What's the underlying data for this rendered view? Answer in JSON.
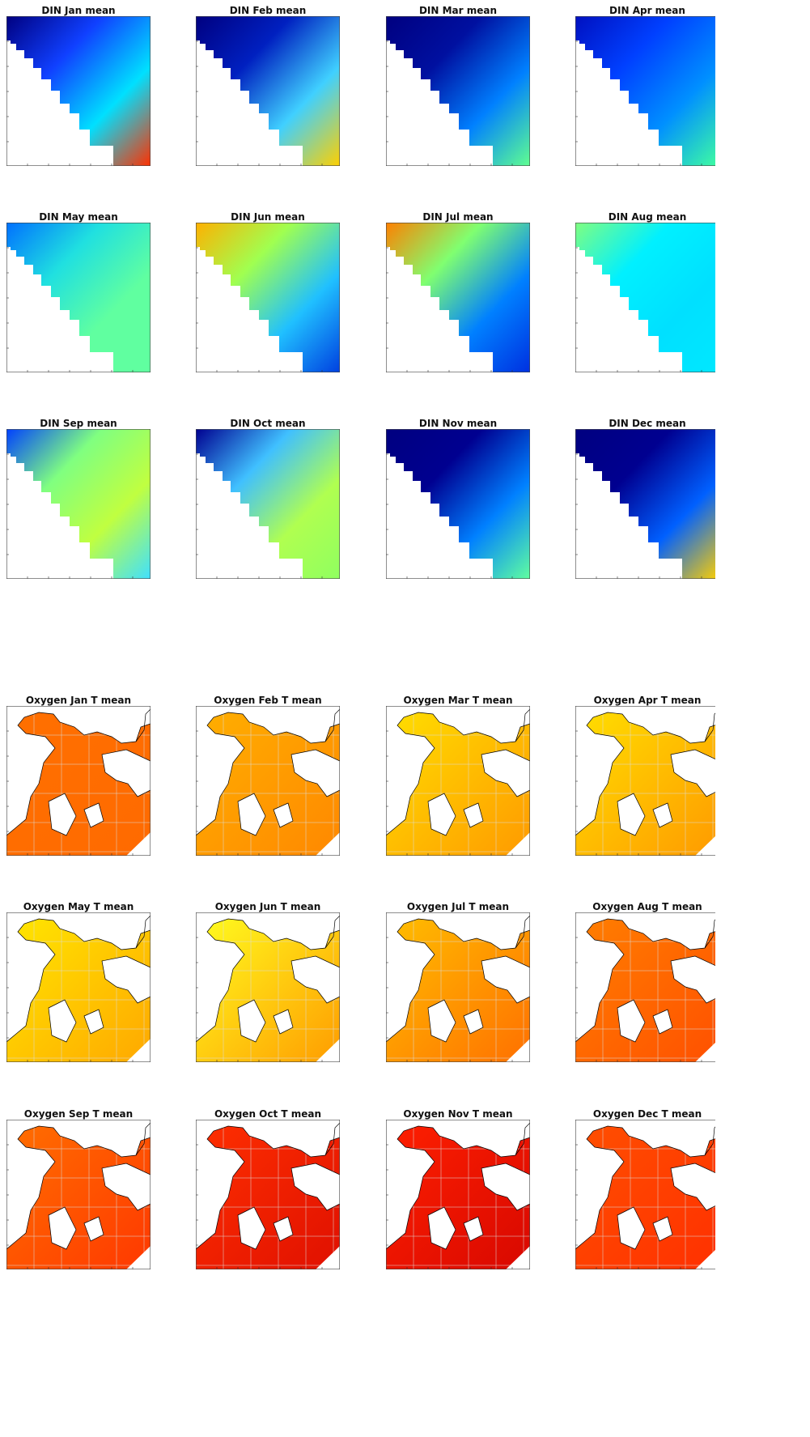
{
  "din_panels": [
    {
      "title": "DIN Jan mean",
      "colors": [
        "#000080",
        "#1040ff",
        "#00e0ff",
        "#ff3000"
      ]
    },
    {
      "title": "DIN Feb mean",
      "colors": [
        "#000080",
        "#0020c0",
        "#40d0ff",
        "#ffd000"
      ]
    },
    {
      "title": "DIN Mar mean",
      "colors": [
        "#000080",
        "#0010a0",
        "#0080ff",
        "#60ff90"
      ]
    },
    {
      "title": "DIN Apr mean",
      "colors": [
        "#0010c0",
        "#0040ff",
        "#0090ff",
        "#40ffa0"
      ]
    },
    {
      "title": "DIN May mean",
      "colors": [
        "#0070ff",
        "#20e0e0",
        "#60ffa0",
        "#60ffa0"
      ]
    },
    {
      "title": "DIN Jun mean",
      "colors": [
        "#ffb000",
        "#a0ff50",
        "#20c0ff",
        "#0040e0"
      ]
    },
    {
      "title": "DIN Jul mean",
      "colors": [
        "#ff8000",
        "#80ff70",
        "#0080ff",
        "#0030e0"
      ]
    },
    {
      "title": "DIN Aug mean",
      "colors": [
        "#80ff80",
        "#00f0ff",
        "#00e0ff",
        "#00e8ff"
      ]
    },
    {
      "title": "DIN Sep mean",
      "colors": [
        "#0040ff",
        "#80ff80",
        "#c0ff40",
        "#40e0ff"
      ]
    },
    {
      "title": "DIN Oct mean",
      "colors": [
        "#000090",
        "#40c0ff",
        "#b0ff50",
        "#90ff60"
      ]
    },
    {
      "title": "DIN Nov mean",
      "colors": [
        "#000080",
        "#000090",
        "#0080ff",
        "#60ffa0"
      ]
    },
    {
      "title": "DIN Dec mean",
      "colors": [
        "#000080",
        "#000090",
        "#0060ff",
        "#ffd000"
      ]
    }
  ],
  "oxygen_panels": [
    {
      "title": "Oxygen Jan T mean",
      "colors": [
        "#ff7000",
        "#ff6a00"
      ]
    },
    {
      "title": "Oxygen Feb T mean",
      "colors": [
        "#ffb000",
        "#ff8800"
      ]
    },
    {
      "title": "Oxygen Mar T mean",
      "colors": [
        "#ffe000",
        "#ff9a00"
      ]
    },
    {
      "title": "Oxygen Apr T mean",
      "colors": [
        "#ffe000",
        "#ff9a00"
      ]
    },
    {
      "title": "Oxygen May T mean",
      "colors": [
        "#ffe800",
        "#ffa800"
      ]
    },
    {
      "title": "Oxygen Jun T mean",
      "colors": [
        "#ffff20",
        "#ff9c00"
      ]
    },
    {
      "title": "Oxygen Jul T mean",
      "colors": [
        "#ffc000",
        "#ff7000"
      ]
    },
    {
      "title": "Oxygen Aug T mean",
      "colors": [
        "#ff8000",
        "#ff5000"
      ]
    },
    {
      "title": "Oxygen Sep T mean",
      "colors": [
        "#ff7000",
        "#ff3800"
      ]
    },
    {
      "title": "Oxygen Oct T mean",
      "colors": [
        "#ff3000",
        "#e01000"
      ]
    },
    {
      "title": "Oxygen Nov T mean",
      "colors": [
        "#ff2000",
        "#d80800"
      ]
    },
    {
      "title": "Oxygen Dec T mean",
      "colors": [
        "#ff5000",
        "#ff3000"
      ]
    }
  ]
}
